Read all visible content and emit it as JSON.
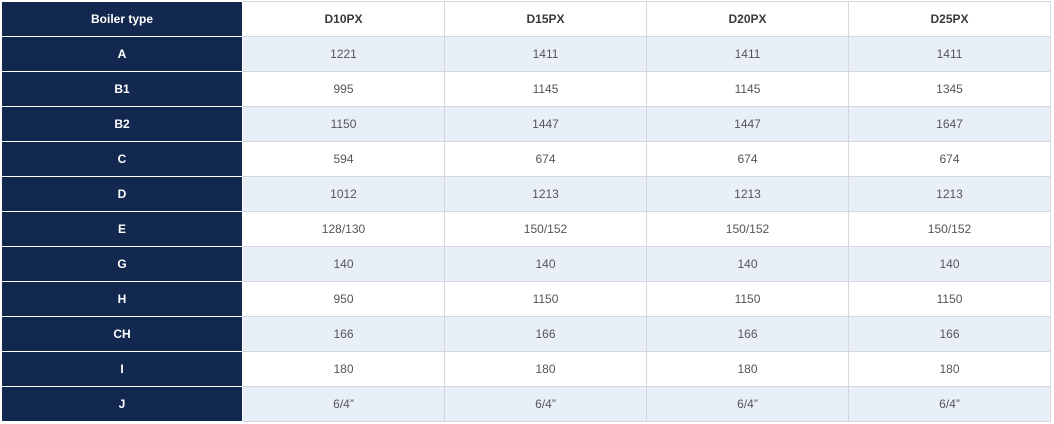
{
  "table": {
    "header": [
      "Boiler type",
      "D10PX",
      "D15PX",
      "D20PX",
      "D25PX"
    ],
    "rows": [
      [
        "A",
        1221,
        1411,
        1411,
        1411
      ],
      [
        "B1",
        995,
        1145,
        1145,
        1345
      ],
      [
        "B2",
        1150,
        1447,
        1447,
        1647
      ],
      [
        "C",
        594,
        674,
        674,
        674
      ],
      [
        "D",
        1012,
        1213,
        1213,
        1213
      ],
      [
        "E",
        "128/130",
        "150/152",
        "150/152",
        "150/152"
      ],
      [
        "G",
        140,
        140,
        140,
        140
      ],
      [
        "H",
        950,
        1150,
        1150,
        1150
      ],
      [
        "CH",
        166,
        166,
        166,
        166
      ],
      [
        "I",
        180,
        180,
        180,
        180
      ],
      [
        "J",
        "6/4”",
        "6/4”",
        "6/4”",
        "6/4”"
      ]
    ]
  }
}
